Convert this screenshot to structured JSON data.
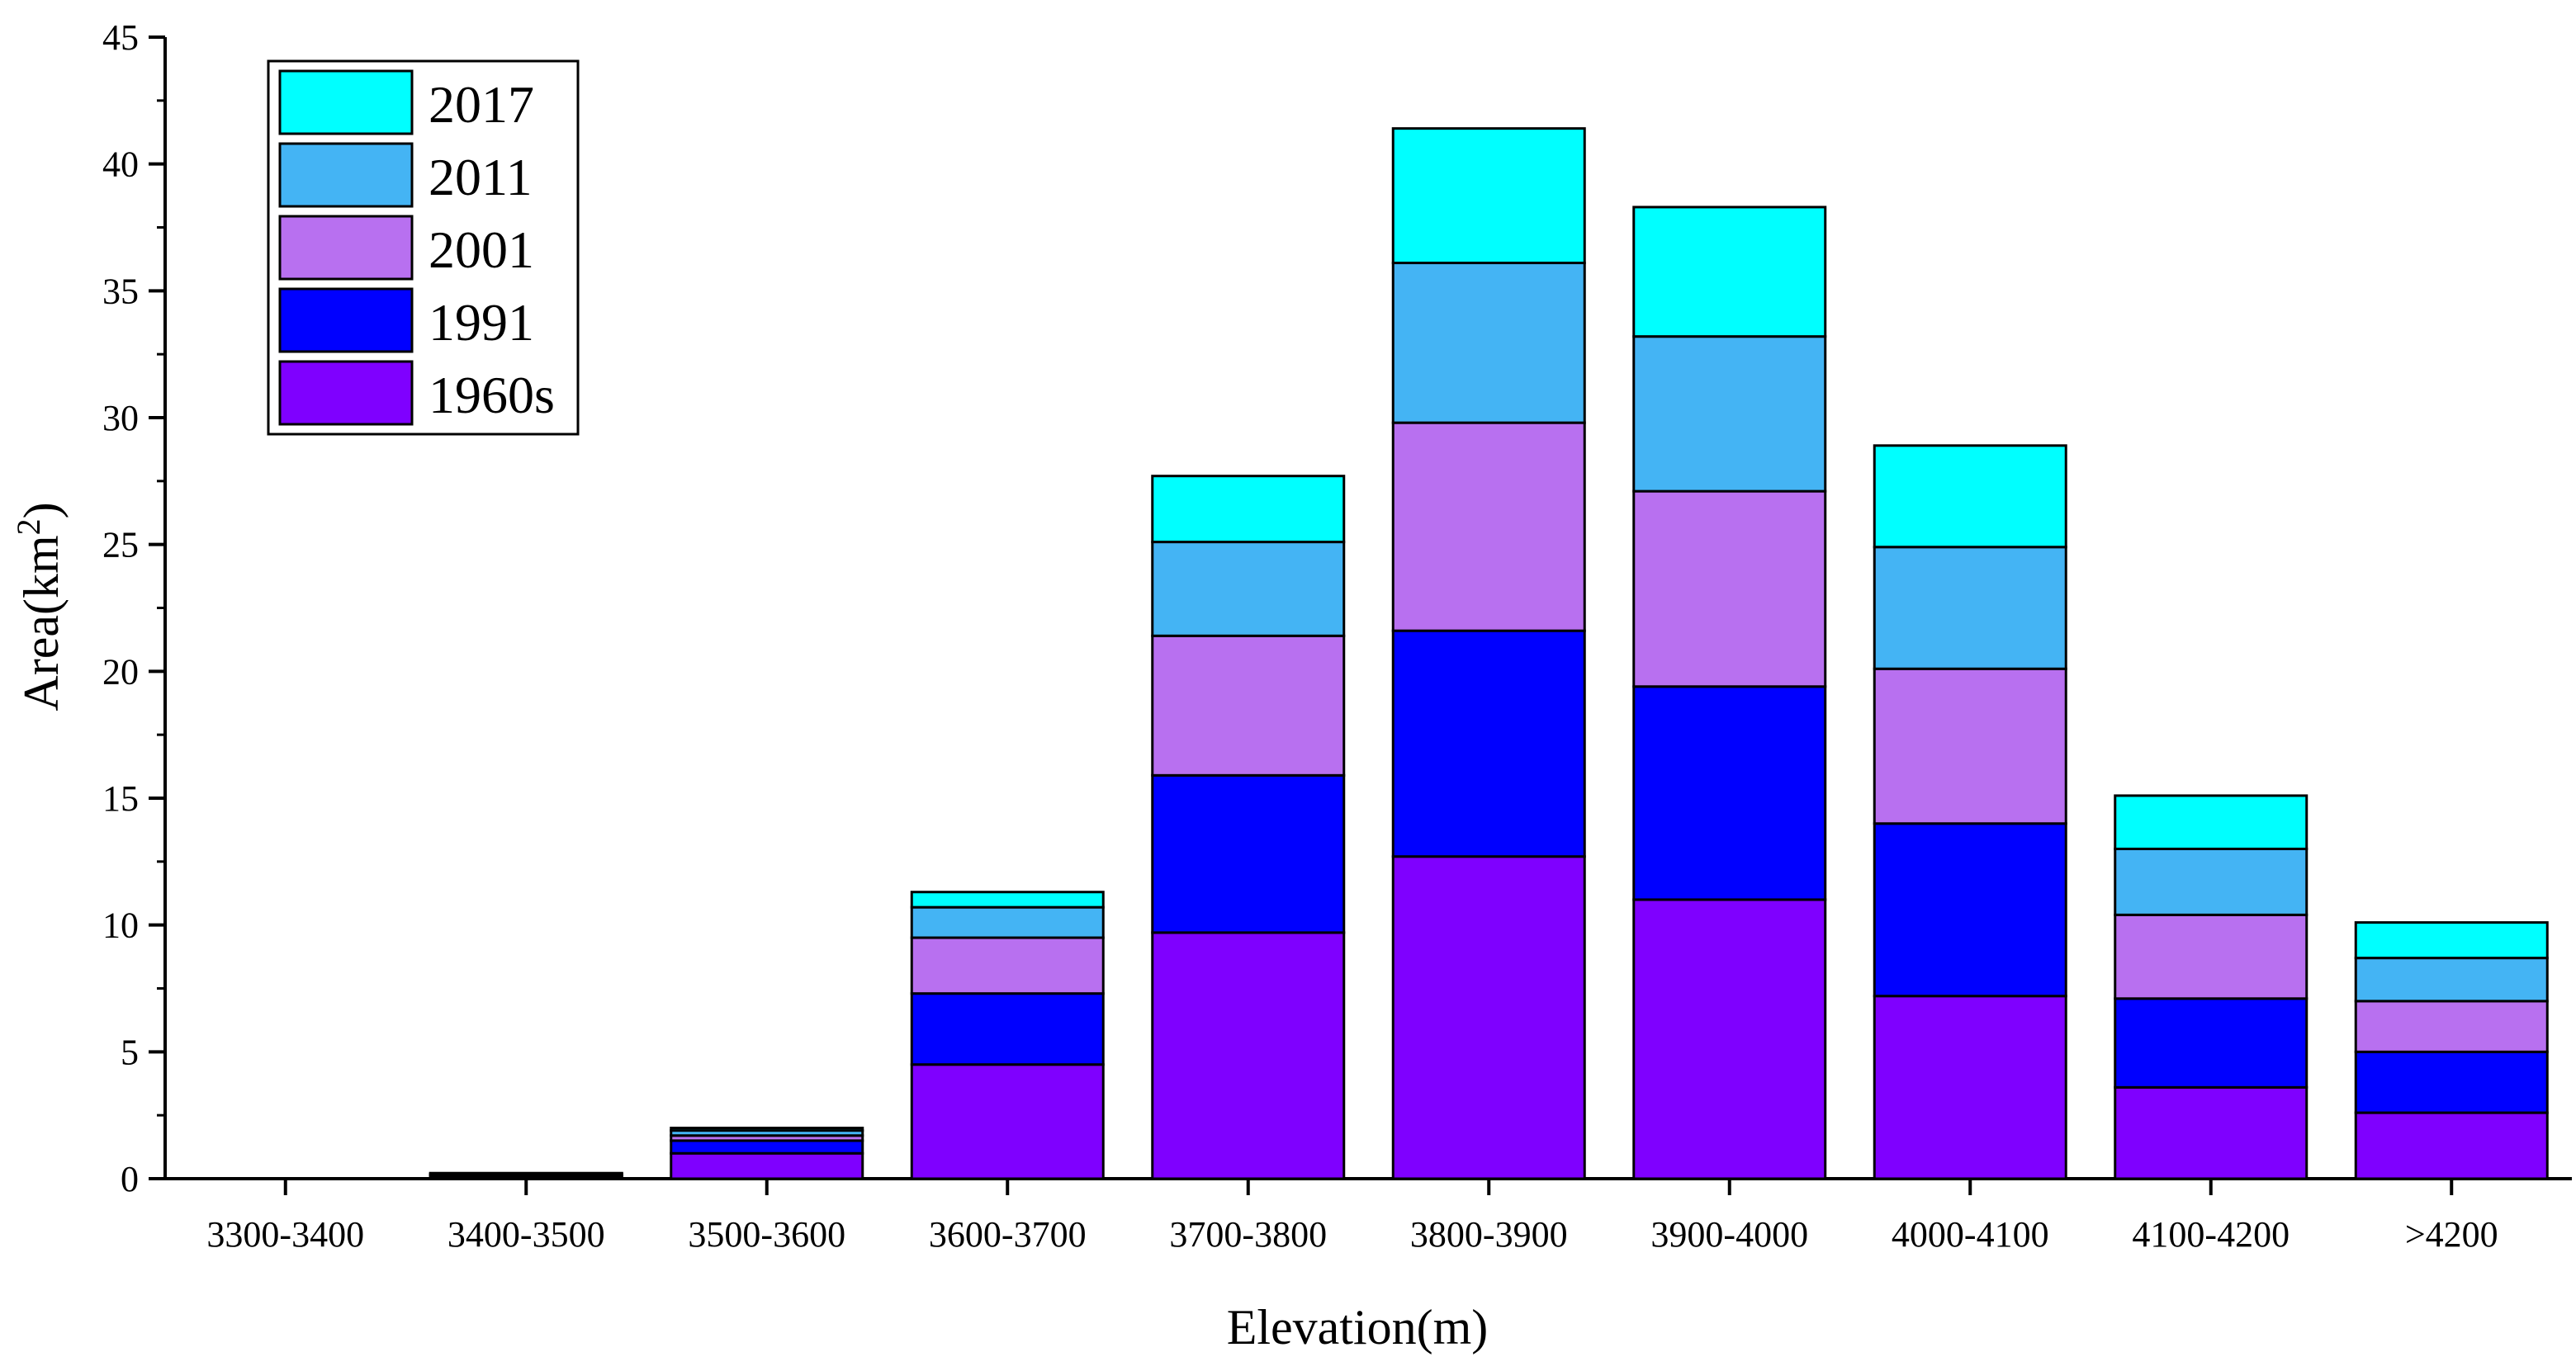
{
  "chart_data": {
    "type": "bar",
    "stacked": true,
    "title": "",
    "xlabel": "Elevation(m)",
    "ylabel": {
      "base": "Area(km",
      "sup": "2",
      "close": ")"
    },
    "ylim": [
      0,
      45
    ],
    "yticks": [
      "0",
      "5",
      "10",
      "15",
      "20",
      "25",
      "30",
      "35",
      "40",
      "45"
    ],
    "categories": [
      "3300-3400",
      "3400-3500",
      "3500-3600",
      "3600-3700",
      "3700-3800",
      "3800-3900",
      "3900-4000",
      "4000-4100",
      "4100-4200",
      ">4200"
    ],
    "legend_position": "top-left",
    "series": [
      {
        "name": "1960s",
        "color": "#7f00ff",
        "values": [
          0.0,
          0.1,
          1.0,
          4.5,
          9.7,
          12.7,
          11.0,
          7.2,
          3.6,
          2.6
        ]
      },
      {
        "name": "1991",
        "color": "#0000ff",
        "values": [
          0.0,
          0.05,
          0.5,
          2.8,
          6.2,
          8.9,
          8.4,
          6.8,
          3.5,
          2.4
        ]
      },
      {
        "name": "2001",
        "color": "#b870f0",
        "values": [
          0.0,
          0.03,
          0.2,
          2.2,
          5.5,
          8.2,
          7.7,
          6.1,
          3.3,
          2.0
        ]
      },
      {
        "name": "2011",
        "color": "#44b4f4",
        "values": [
          0.0,
          0.02,
          0.2,
          1.2,
          3.7,
          6.3,
          6.1,
          4.8,
          2.6,
          1.7
        ]
      },
      {
        "name": "2017",
        "color": "#00ffff",
        "values": [
          0.0,
          0.02,
          0.1,
          0.6,
          2.6,
          5.3,
          5.1,
          4.0,
          2.1,
          1.4
        ]
      }
    ],
    "legend_order": [
      "2017",
      "2011",
      "2001",
      "1991",
      "1960s"
    ]
  }
}
